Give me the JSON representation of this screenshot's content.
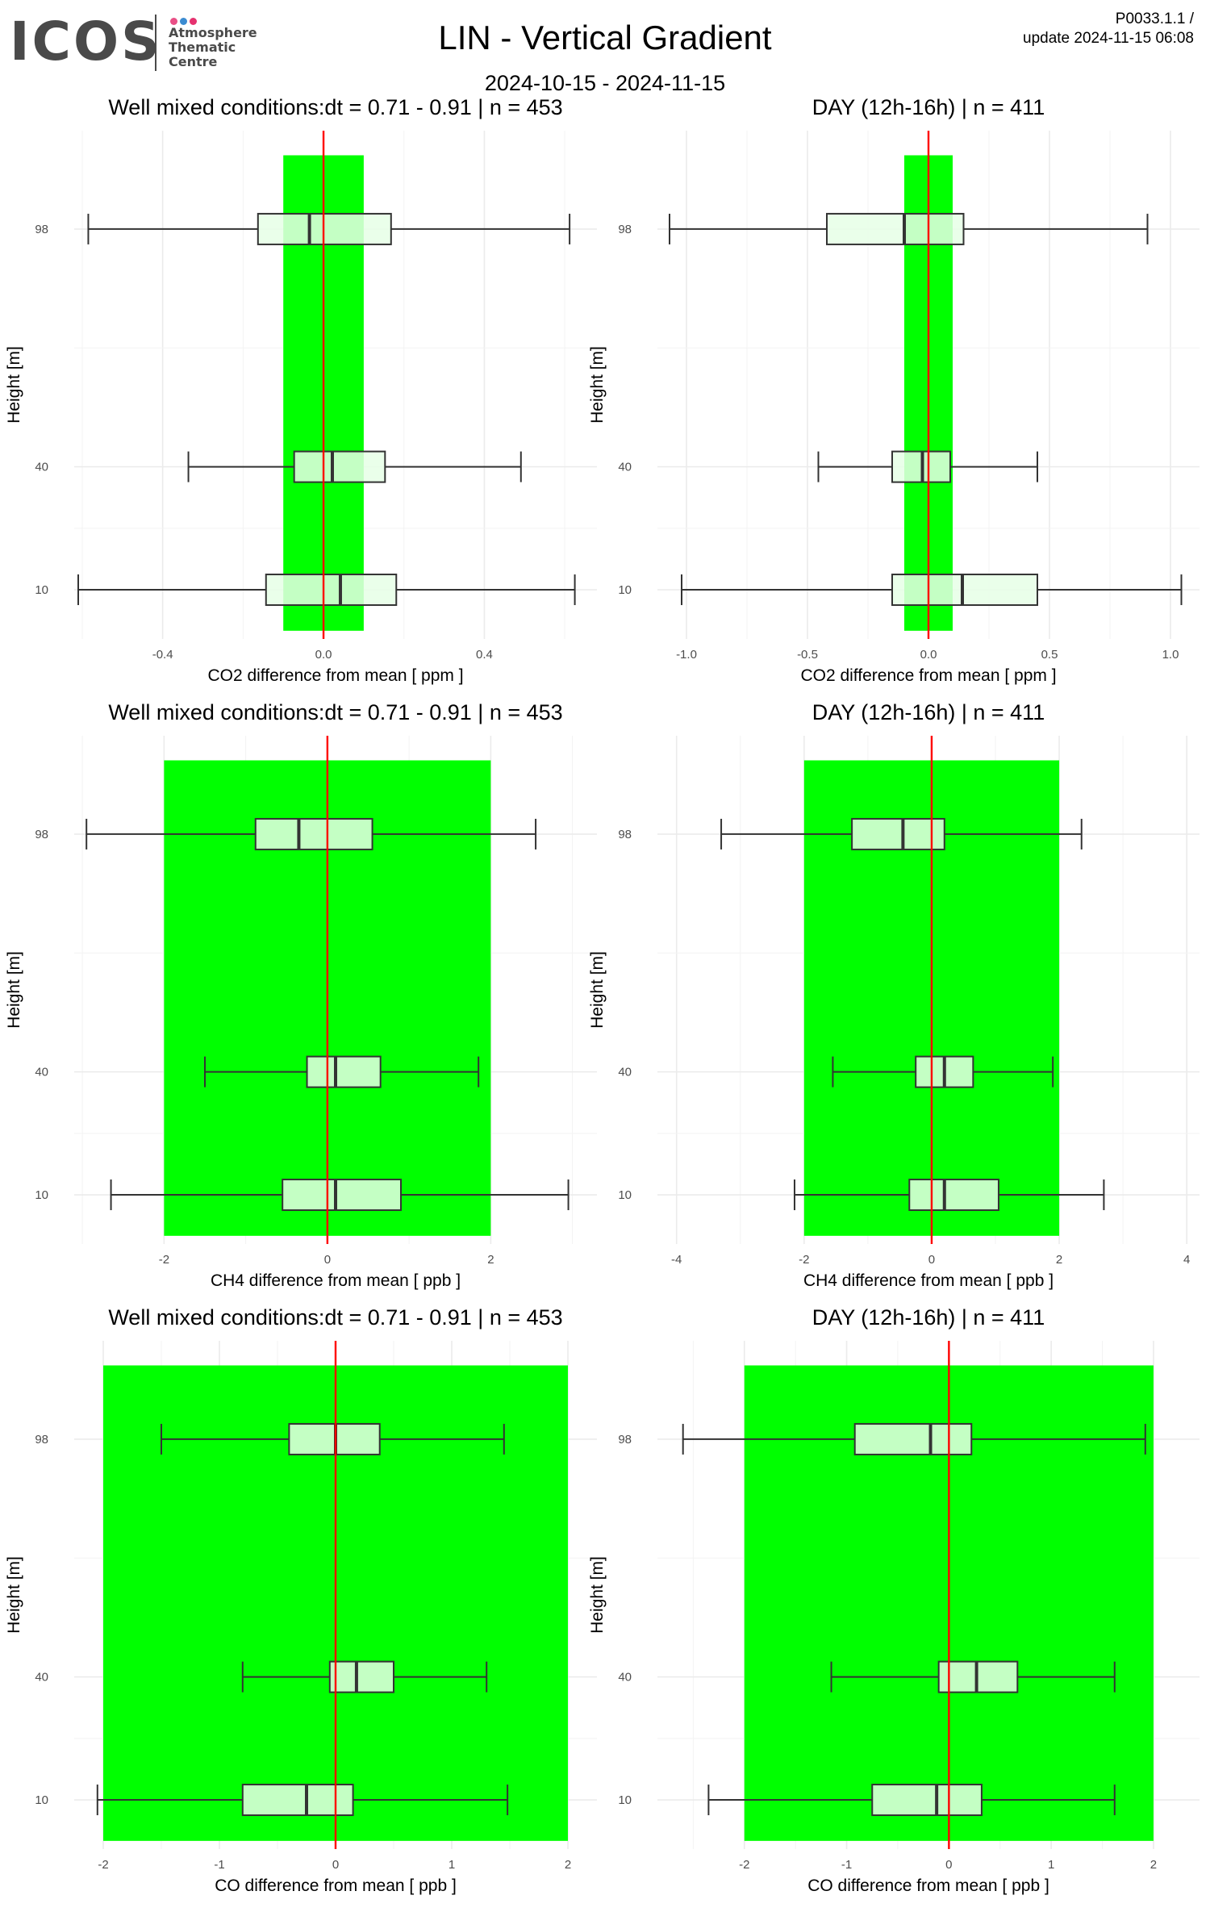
{
  "header": {
    "logo": {
      "brand": "ICOS",
      "line1": "Atmosphere",
      "line2": "Thematic",
      "line3": "Centre",
      "dot_colors": [
        "#e94f86",
        "#3b8bd1",
        "#e5316f"
      ]
    },
    "title": "LIN - Vertical Gradient",
    "subtitle": "2024-10-15 - 2024-11-15",
    "version": "P0033.1.1 /",
    "update": "update  2024-11-15 06:08"
  },
  "colors": {
    "band": "#00ff00",
    "zero_line": "#ff0000",
    "box_fill": "#e6ffe6",
    "box_stroke": "#333333",
    "grid": "#ebebeb"
  },
  "chart_data": [
    {
      "type": "boxplot",
      "title": "Well mixed conditions:dt = 0.71 - 0.91 | n = 453",
      "xlabel": "CO2  difference from mean [ ppm ]",
      "ylabel": "Height [m]",
      "xlim": [
        -0.62,
        0.68
      ],
      "xticks": [
        -0.4,
        0.0,
        0.4
      ],
      "xtick_labels": [
        "-0.4",
        "0.0",
        "0.4"
      ],
      "minor_xticks": [
        -0.6,
        -0.2,
        0.2,
        0.6
      ],
      "yticks": [
        98,
        40,
        10
      ],
      "ylim": [
        -2,
        122
      ],
      "band": [
        -0.1,
        0.1
      ],
      "boxes": [
        {
          "height": 98,
          "min": -0.585,
          "q1": -0.163,
          "median": -0.035,
          "q3": 0.168,
          "max": 0.612
        },
        {
          "height": 40,
          "min": -0.336,
          "q1": -0.073,
          "median": 0.022,
          "q3": 0.153,
          "max": 0.491
        },
        {
          "height": 10,
          "min": -0.61,
          "q1": -0.143,
          "median": 0.042,
          "q3": 0.181,
          "max": 0.625
        }
      ]
    },
    {
      "type": "boxplot",
      "title": "DAY (12h-16h) | n = 411",
      "xlabel": "CO2  difference from mean [ ppm ]",
      "ylabel": "Height [m]",
      "xlim": [
        -1.12,
        1.12
      ],
      "xticks": [
        -1.0,
        -0.5,
        0.0,
        0.5,
        1.0
      ],
      "xtick_labels": [
        "-1.0",
        "-0.5",
        "0.0",
        "0.5",
        "1.0"
      ],
      "minor_xticks": [
        -0.75,
        -0.25,
        0.25,
        0.75
      ],
      "yticks": [
        98,
        40,
        10
      ],
      "ylim": [
        -2,
        122
      ],
      "band": [
        -0.1,
        0.1
      ],
      "boxes": [
        {
          "height": 98,
          "min": -1.07,
          "q1": -0.42,
          "median": -0.1,
          "q3": 0.145,
          "max": 0.905
        },
        {
          "height": 40,
          "min": -0.455,
          "q1": -0.15,
          "median": -0.025,
          "q3": 0.09,
          "max": 0.45
        },
        {
          "height": 10,
          "min": -1.02,
          "q1": -0.15,
          "median": 0.14,
          "q3": 0.45,
          "max": 1.045
        }
      ]
    },
    {
      "type": "boxplot",
      "title": "Well mixed conditions:dt = 0.71 - 0.91 | n = 453",
      "xlabel": "CH4  difference from mean [ ppb ]",
      "ylabel": "Height [m]",
      "xlim": [
        -3.1,
        3.3
      ],
      "xticks": [
        -2,
        0,
        2
      ],
      "xtick_labels": [
        "-2",
        "0",
        "2"
      ],
      "minor_xticks": [
        -3,
        -1,
        1,
        3
      ],
      "yticks": [
        98,
        40,
        10
      ],
      "ylim": [
        -2,
        122
      ],
      "band": [
        -2,
        2
      ],
      "boxes": [
        {
          "height": 98,
          "min": -2.95,
          "q1": -0.88,
          "median": -0.35,
          "q3": 0.55,
          "max": 2.55
        },
        {
          "height": 40,
          "min": -1.5,
          "q1": -0.25,
          "median": 0.1,
          "q3": 0.65,
          "max": 1.85
        },
        {
          "height": 10,
          "min": -2.65,
          "q1": -0.55,
          "median": 0.1,
          "q3": 0.9,
          "max": 2.95
        }
      ]
    },
    {
      "type": "boxplot",
      "title": "DAY (12h-16h) | n = 411",
      "xlabel": "CH4  difference from mean [ ppb ]",
      "ylabel": "Height [m]",
      "xlim": [
        -4.3,
        4.2
      ],
      "xticks": [
        -4,
        -2,
        0,
        2,
        4
      ],
      "xtick_labels": [
        "-4",
        "-2",
        "0",
        "2",
        "4"
      ],
      "minor_xticks": [
        -3,
        -1,
        1,
        3
      ],
      "yticks": [
        98,
        40,
        10
      ],
      "ylim": [
        -2,
        122
      ],
      "band": [
        -2,
        2
      ],
      "boxes": [
        {
          "height": 98,
          "min": -3.3,
          "q1": -1.25,
          "median": -0.45,
          "q3": 0.2,
          "max": 2.35
        },
        {
          "height": 40,
          "min": -1.55,
          "q1": -0.25,
          "median": 0.2,
          "q3": 0.65,
          "max": 1.9
        },
        {
          "height": 10,
          "min": -2.15,
          "q1": -0.35,
          "median": 0.2,
          "q3": 1.05,
          "max": 2.7
        }
      ]
    },
    {
      "type": "boxplot",
      "title": "Well mixed conditions:dt = 0.71 - 0.91 | n = 453",
      "xlabel": "CO  difference from mean [ ppb ]",
      "ylabel": "Height [m]",
      "xlim": [
        -2.25,
        2.25
      ],
      "xticks": [
        -2,
        -1,
        0,
        1,
        2
      ],
      "xtick_labels": [
        "-2",
        "-1",
        "0",
        "1",
        "2"
      ],
      "minor_xticks": [
        -1.5,
        -0.5,
        0.5,
        1.5
      ],
      "yticks": [
        98,
        40,
        10
      ],
      "ylim": [
        -2,
        122
      ],
      "band": [
        -2,
        2
      ],
      "boxes": [
        {
          "height": 98,
          "min": -1.5,
          "q1": -0.4,
          "median": 0.0,
          "q3": 0.38,
          "max": 1.45
        },
        {
          "height": 40,
          "min": -0.8,
          "q1": -0.05,
          "median": 0.18,
          "q3": 0.5,
          "max": 1.3
        },
        {
          "height": 10,
          "min": -2.05,
          "q1": -0.8,
          "median": -0.25,
          "q3": 0.15,
          "max": 1.48
        }
      ]
    },
    {
      "type": "boxplot",
      "title": "DAY (12h-16h) | n = 411",
      "xlabel": "CO  difference from mean [ ppb ]",
      "ylabel": "Height [m]",
      "xlim": [
        -2.85,
        2.45
      ],
      "xticks": [
        -2,
        -1,
        0,
        1,
        2
      ],
      "xtick_labels": [
        "-2",
        "-1",
        "0",
        "1",
        "2"
      ],
      "minor_xticks": [
        -2.5,
        -1.5,
        -0.5,
        0.5,
        1.5
      ],
      "yticks": [
        98,
        40,
        10
      ],
      "ylim": [
        -2,
        122
      ],
      "band": [
        -2,
        2
      ],
      "boxes": [
        {
          "height": 98,
          "min": -2.6,
          "q1": -0.92,
          "median": -0.18,
          "q3": 0.22,
          "max": 1.92
        },
        {
          "height": 40,
          "min": -1.15,
          "q1": -0.1,
          "median": 0.27,
          "q3": 0.67,
          "max": 1.62
        },
        {
          "height": 10,
          "min": -2.35,
          "q1": -0.75,
          "median": -0.12,
          "q3": 0.32,
          "max": 1.62
        }
      ]
    }
  ]
}
